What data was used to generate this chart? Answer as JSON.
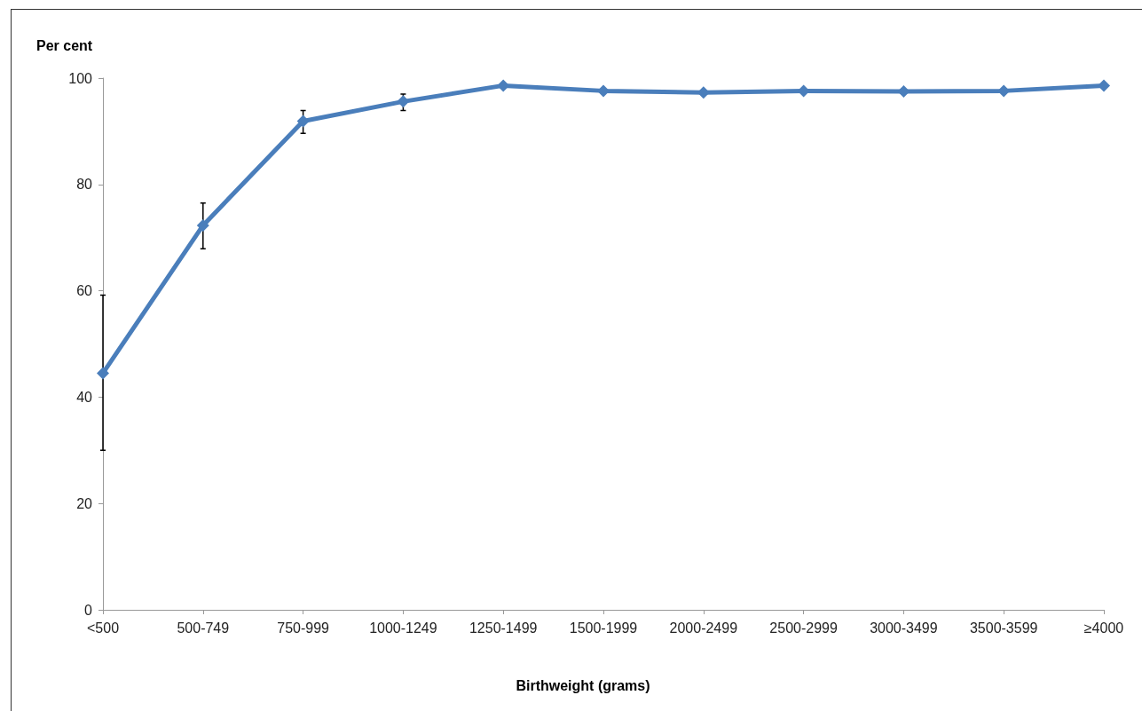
{
  "chart_data": {
    "type": "line",
    "xlabel": "Birthweight (grams)",
    "ylabel": "Per cent",
    "categories": [
      "<500",
      "500-749",
      "750-999",
      "1000-1249",
      "1250-1499",
      "1500-1999",
      "2000-2499",
      "2500-2999",
      "3000-3499",
      "3500-3599",
      "≥4000"
    ],
    "series": [
      {
        "color": "#4a7ebb",
        "values": [
          44.5,
          72.3,
          91.9,
          95.6,
          98.6,
          97.6,
          97.3,
          97.6,
          97.5,
          97.6,
          98.6
        ],
        "errors": [
          [
            30,
            59.2
          ],
          [
            67.9,
            76.5
          ],
          [
            89.6,
            93.9
          ],
          [
            93.9,
            97
          ],
          null,
          null,
          null,
          null,
          null,
          null,
          null
        ]
      }
    ],
    "ylim": [
      0,
      100
    ],
    "yticks": [
      0,
      20,
      40,
      60,
      80,
      100
    ],
    "grid": false,
    "marker": "diamond",
    "line_style": "solid"
  }
}
